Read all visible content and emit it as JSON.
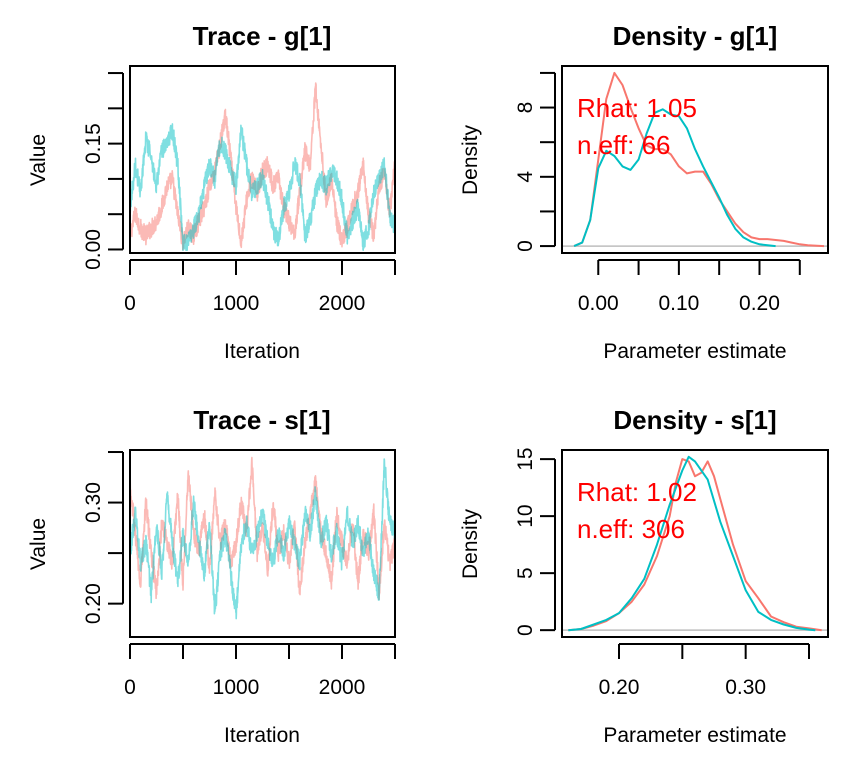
{
  "colors": {
    "chain1": "#F8766D",
    "chain2": "#00BFC4",
    "annotation": "#FF0000",
    "zero_line": "#BEBEBE",
    "axis": "#000000"
  },
  "chart_data": [
    {
      "id": "trace-g1",
      "type": "line",
      "title": "Trace - g[1]",
      "xlabel": "Iteration",
      "ylabel": "Value",
      "xlim": [
        0,
        2500
      ],
      "ylim": [
        -0.005,
        0.26
      ],
      "xticks": [
        0,
        500,
        1000,
        1500,
        2000,
        2500
      ],
      "xtick_labels": [
        "0",
        "",
        "1000",
        "",
        "2000",
        ""
      ],
      "yticks": [
        0.0,
        0.05,
        0.1,
        0.15,
        0.2,
        0.25
      ],
      "ytick_labels": [
        "0.00",
        "",
        "",
        "0.15",
        "",
        ""
      ],
      "grid": false,
      "legend": "none",
      "series": [
        {
          "name": "chain 1",
          "color_key": "chain1",
          "alpha": 0.5,
          "x_step": 50,
          "values": [
            0.02,
            0.05,
            0.03,
            0.02,
            0.03,
            0.04,
            0.06,
            0.09,
            0.1,
            0.05,
            0.01,
            0.03,
            0.02,
            0.04,
            0.06,
            0.09,
            0.11,
            0.15,
            0.19,
            0.13,
            0.06,
            0.01,
            0.07,
            0.1,
            0.08,
            0.11,
            0.12,
            0.09,
            0.1,
            0.06,
            0.04,
            0.02,
            0.08,
            0.14,
            0.12,
            0.23,
            0.15,
            0.07,
            0.1,
            0.04,
            0.01,
            0.03,
            0.06,
            0.08,
            0.12,
            0.05,
            0.02,
            0.09,
            0.11,
            0.05,
            0.12
          ]
        },
        {
          "name": "chain 2",
          "color_key": "chain2",
          "alpha": 0.5,
          "x_step": 50,
          "values": [
            0.06,
            0.12,
            0.08,
            0.16,
            0.13,
            0.09,
            0.14,
            0.15,
            0.17,
            0.12,
            0.01,
            0.01,
            0.03,
            0.05,
            0.09,
            0.12,
            0.1,
            0.15,
            0.14,
            0.11,
            0.09,
            0.17,
            0.12,
            0.08,
            0.09,
            0.1,
            0.07,
            0.03,
            0.01,
            0.06,
            0.08,
            0.12,
            0.1,
            0.02,
            0.04,
            0.08,
            0.1,
            0.09,
            0.11,
            0.1,
            0.07,
            0.02,
            0.04,
            0.06,
            0.01,
            0.03,
            0.08,
            0.1,
            0.12,
            0.05,
            0.03
          ]
        }
      ]
    },
    {
      "id": "density-g1",
      "type": "line",
      "title": "Density - g[1]",
      "xlabel": "Parameter estimate",
      "ylabel": "Density",
      "xlim": [
        -0.045,
        0.285
      ],
      "ylim": [
        -0.4,
        10.4
      ],
      "xticks": [
        0.0,
        0.05,
        0.1,
        0.15,
        0.2,
        0.25
      ],
      "xtick_labels": [
        "0.00",
        "",
        "0.10",
        "",
        "0.20",
        ""
      ],
      "yticks": [
        0,
        2,
        4,
        6,
        8,
        10
      ],
      "ytick_labels": [
        "0",
        "",
        "4",
        "",
        "8",
        ""
      ],
      "grid": false,
      "legend": "none",
      "annotations": [
        "Rhat: 1.05",
        "n.eff: 66"
      ],
      "series": [
        {
          "name": "chain 1",
          "color_key": "chain1",
          "x": [
            -0.03,
            -0.02,
            -0.01,
            0.0,
            0.01,
            0.02,
            0.03,
            0.04,
            0.05,
            0.06,
            0.07,
            0.08,
            0.09,
            0.1,
            0.11,
            0.12,
            0.13,
            0.14,
            0.15,
            0.16,
            0.17,
            0.18,
            0.19,
            0.2,
            0.21,
            0.22,
            0.23,
            0.24,
            0.25,
            0.26,
            0.28
          ],
          "y": [
            0,
            0.2,
            1.5,
            5,
            8.5,
            10,
            9.3,
            8,
            6.8,
            5.8,
            5.6,
            5.6,
            5.3,
            4.6,
            4.2,
            4.3,
            4.3,
            3.6,
            2.7,
            2.0,
            1.3,
            0.8,
            0.5,
            0.4,
            0.4,
            0.35,
            0.3,
            0.2,
            0.1,
            0.05,
            0
          ]
        },
        {
          "name": "chain 2",
          "color_key": "chain2",
          "x": [
            -0.03,
            -0.02,
            -0.01,
            0.0,
            0.01,
            0.02,
            0.03,
            0.04,
            0.05,
            0.06,
            0.07,
            0.08,
            0.09,
            0.1,
            0.11,
            0.12,
            0.13,
            0.14,
            0.15,
            0.16,
            0.17,
            0.18,
            0.19,
            0.2,
            0.22
          ],
          "y": [
            0,
            0.2,
            1.5,
            4.5,
            5.5,
            5.2,
            4.6,
            4.4,
            5.0,
            6.5,
            7.7,
            7.9,
            7.6,
            7.5,
            6.8,
            5.6,
            4.6,
            3.7,
            2.8,
            1.8,
            1.0,
            0.5,
            0.25,
            0.1,
            0
          ]
        }
      ]
    },
    {
      "id": "trace-s1",
      "type": "line",
      "title": "Trace - s[1]",
      "xlabel": "Iteration",
      "ylabel": "Value",
      "xlim": [
        0,
        2500
      ],
      "ylim": [
        0.167,
        0.352
      ],
      "xticks": [
        0,
        500,
        1000,
        1500,
        2000,
        2500
      ],
      "xtick_labels": [
        "0",
        "",
        "1000",
        "",
        "2000",
        ""
      ],
      "yticks": [
        0.2,
        0.25,
        0.3,
        0.35
      ],
      "ytick_labels": [
        "0.20",
        "",
        "0.30",
        ""
      ],
      "grid": false,
      "legend": "none",
      "series": [
        {
          "name": "chain 1",
          "color_key": "chain1",
          "alpha": 0.5,
          "x_step": 50,
          "values": [
            0.32,
            0.27,
            0.22,
            0.3,
            0.25,
            0.21,
            0.28,
            0.26,
            0.24,
            0.31,
            0.22,
            0.33,
            0.27,
            0.25,
            0.29,
            0.23,
            0.31,
            0.26,
            0.28,
            0.24,
            0.26,
            0.3,
            0.27,
            0.34,
            0.25,
            0.28,
            0.23,
            0.3,
            0.25,
            0.27,
            0.24,
            0.28,
            0.21,
            0.26,
            0.29,
            0.32,
            0.27,
            0.25,
            0.22,
            0.29,
            0.26,
            0.24,
            0.28,
            0.22,
            0.27,
            0.25,
            0.29,
            0.21,
            0.28,
            0.24,
            0.26
          ]
        },
        {
          "name": "chain 2",
          "color_key": "chain2",
          "alpha": 0.5,
          "x_step": 50,
          "values": [
            0.25,
            0.29,
            0.24,
            0.26,
            0.21,
            0.28,
            0.23,
            0.31,
            0.26,
            0.22,
            0.27,
            0.24,
            0.3,
            0.26,
            0.23,
            0.28,
            0.19,
            0.25,
            0.27,
            0.23,
            0.19,
            0.26,
            0.28,
            0.25,
            0.27,
            0.29,
            0.26,
            0.24,
            0.27,
            0.25,
            0.28,
            0.26,
            0.24,
            0.29,
            0.27,
            0.31,
            0.26,
            0.28,
            0.25,
            0.27,
            0.24,
            0.29,
            0.26,
            0.28,
            0.25,
            0.27,
            0.23,
            0.21,
            0.34,
            0.28,
            0.27
          ]
        }
      ]
    },
    {
      "id": "density-s1",
      "type": "line",
      "title": "Density - s[1]",
      "xlabel": "Parameter estimate",
      "ylabel": "Density",
      "xlim": [
        0.155,
        0.365
      ],
      "ylim": [
        -0.6,
        15.8
      ],
      "xticks": [
        0.2,
        0.25,
        0.3,
        0.35
      ],
      "xtick_labels": [
        "0.20",
        "",
        "0.30",
        ""
      ],
      "yticks": [
        0,
        5,
        10,
        15
      ],
      "ytick_labels": [
        "0",
        "5",
        "10",
        "15"
      ],
      "grid": false,
      "legend": "none",
      "annotations": [
        "Rhat: 1.02",
        "n.eff: 306"
      ],
      "series": [
        {
          "name": "chain 1",
          "color_key": "chain1",
          "x": [
            0.16,
            0.17,
            0.18,
            0.19,
            0.2,
            0.21,
            0.22,
            0.23,
            0.24,
            0.245,
            0.25,
            0.255,
            0.26,
            0.265,
            0.27,
            0.275,
            0.28,
            0.29,
            0.3,
            0.31,
            0.32,
            0.33,
            0.34,
            0.35,
            0.36
          ],
          "y": [
            0,
            0.1,
            0.4,
            0.8,
            1.5,
            2.5,
            4,
            6.5,
            10,
            13,
            15,
            14.8,
            13.5,
            13.8,
            14.8,
            13.5,
            11.5,
            7.5,
            4.3,
            2.8,
            1.2,
            0.7,
            0.3,
            0.15,
            0
          ]
        },
        {
          "name": "chain 2",
          "color_key": "chain2",
          "x": [
            0.16,
            0.17,
            0.18,
            0.19,
            0.2,
            0.21,
            0.22,
            0.23,
            0.24,
            0.25,
            0.255,
            0.26,
            0.27,
            0.28,
            0.29,
            0.3,
            0.31,
            0.32,
            0.33,
            0.34,
            0.35,
            0.355
          ],
          "y": [
            0,
            0.1,
            0.5,
            0.9,
            1.5,
            2.8,
            4.5,
            7.5,
            11,
            14,
            15.2,
            14.8,
            13.2,
            9.5,
            6.5,
            3.5,
            1.6,
            0.9,
            0.5,
            0.2,
            0.05,
            0
          ]
        }
      ]
    }
  ]
}
